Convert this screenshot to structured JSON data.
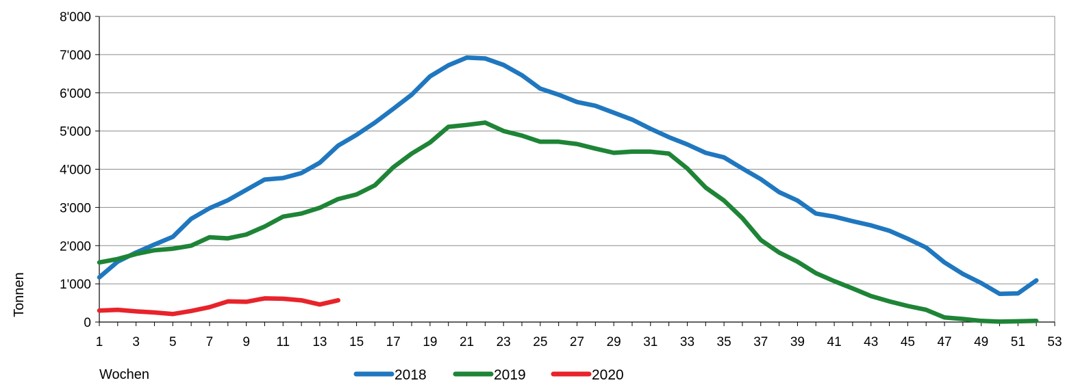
{
  "chart_data": {
    "type": "line",
    "title": "",
    "xlabel": "Wochen",
    "ylabel": "Tonnen",
    "xlim": [
      1,
      53
    ],
    "ylim": [
      0,
      8000
    ],
    "x_ticks": [
      1,
      3,
      5,
      7,
      9,
      11,
      13,
      15,
      17,
      19,
      21,
      23,
      25,
      27,
      29,
      31,
      33,
      35,
      37,
      39,
      41,
      43,
      45,
      47,
      49,
      51,
      53
    ],
    "y_ticks": [
      0,
      1000,
      2000,
      3000,
      4000,
      5000,
      6000,
      7000,
      8000
    ],
    "y_tick_labels": [
      "0",
      "1'000",
      "2'000",
      "3'000",
      "4'000",
      "5'000",
      "6'000",
      "7'000",
      "8'000"
    ],
    "grid": "horizontal",
    "legend": "bottom",
    "series": [
      {
        "name": "2018",
        "color": "#1f77bf",
        "x": [
          1,
          2,
          3,
          4,
          5,
          6,
          7,
          8,
          9,
          10,
          11,
          12,
          13,
          14,
          15,
          16,
          17,
          18,
          19,
          20,
          21,
          22,
          23,
          24,
          25,
          26,
          27,
          28,
          29,
          30,
          31,
          32,
          33,
          34,
          35,
          36,
          37,
          38,
          39,
          40,
          41,
          42,
          43,
          44,
          45,
          46,
          47,
          48,
          49,
          50,
          51,
          52
        ],
        "values": [
          1170,
          1580,
          1820,
          2030,
          2230,
          2700,
          2980,
          3190,
          3460,
          3730,
          3770,
          3900,
          4170,
          4620,
          4900,
          5220,
          5580,
          5950,
          6430,
          6720,
          6920,
          6900,
          6730,
          6460,
          6110,
          5950,
          5760,
          5660,
          5480,
          5300,
          5060,
          4840,
          4650,
          4430,
          4310,
          4020,
          3740,
          3400,
          3180,
          2840,
          2760,
          2640,
          2530,
          2390,
          2180,
          1950,
          1560,
          1260,
          1020,
          740,
          750,
          1090
        ]
      },
      {
        "name": "2019",
        "color": "#1e8436",
        "x": [
          1,
          2,
          3,
          4,
          5,
          6,
          7,
          8,
          9,
          10,
          11,
          12,
          13,
          14,
          15,
          16,
          17,
          18,
          19,
          20,
          21,
          22,
          23,
          24,
          25,
          26,
          27,
          28,
          29,
          30,
          31,
          32,
          33,
          34,
          35,
          36,
          37,
          38,
          39,
          40,
          41,
          42,
          43,
          44,
          45,
          46,
          47,
          48,
          49,
          50,
          51,
          52
        ],
        "values": [
          1560,
          1650,
          1780,
          1880,
          1920,
          2000,
          2220,
          2190,
          2290,
          2500,
          2760,
          2840,
          2990,
          3220,
          3340,
          3580,
          4050,
          4410,
          4700,
          5110,
          5160,
          5220,
          5000,
          4880,
          4720,
          4720,
          4660,
          4540,
          4430,
          4460,
          4460,
          4410,
          4020,
          3520,
          3180,
          2720,
          2150,
          1820,
          1580,
          1280,
          1070,
          880,
          680,
          540,
          420,
          320,
          120,
          80,
          30,
          10,
          20,
          30
        ]
      },
      {
        "name": "2020",
        "color": "#e8232a",
        "x": [
          1,
          2,
          3,
          4,
          5,
          6,
          7,
          8,
          9,
          10,
          11,
          12,
          13,
          14
        ],
        "values": [
          300,
          320,
          280,
          250,
          210,
          290,
          390,
          540,
          530,
          620,
          610,
          570,
          460,
          570
        ]
      }
    ]
  }
}
